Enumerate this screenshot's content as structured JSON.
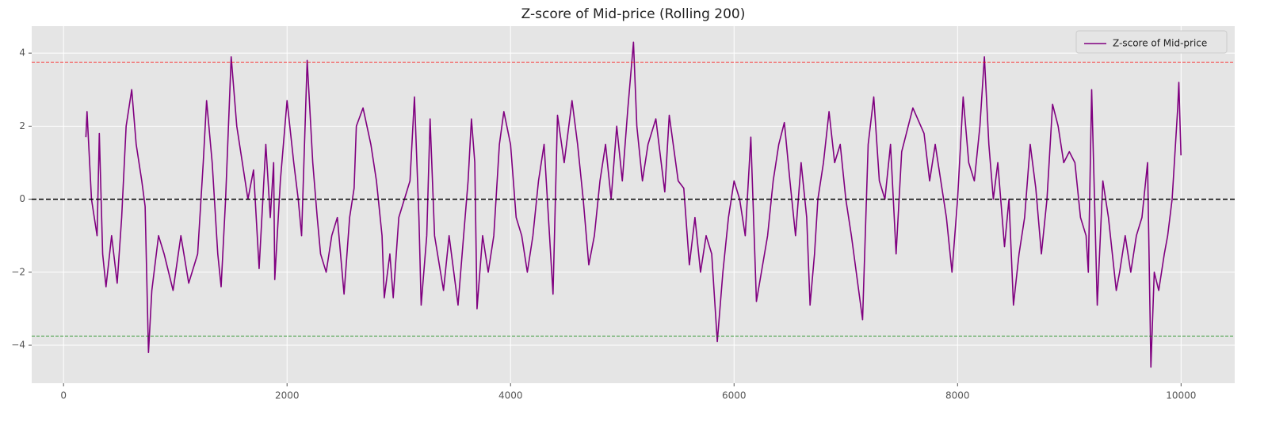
{
  "chart_data": {
    "type": "line",
    "title": "Z-score of Mid-price (Rolling 200)",
    "x": [
      200,
      210,
      250,
      300,
      320,
      350,
      380,
      430,
      480,
      520,
      560,
      610,
      650,
      700,
      730,
      760,
      790,
      850,
      900,
      980,
      1050,
      1120,
      1200,
      1250,
      1280,
      1330,
      1380,
      1410,
      1450,
      1500,
      1550,
      1600,
      1650,
      1700,
      1750,
      1810,
      1850,
      1880,
      1890,
      1940,
      2000,
      2060,
      2100,
      2130,
      2180,
      2230,
      2270,
      2300,
      2350,
      2400,
      2450,
      2510,
      2560,
      2600,
      2620,
      2680,
      2750,
      2800,
      2850,
      2870,
      2920,
      2950,
      3000,
      3050,
      3100,
      3140,
      3180,
      3200,
      3250,
      3280,
      3320,
      3400,
      3450,
      3530,
      3580,
      3620,
      3650,
      3680,
      3700,
      3750,
      3800,
      3850,
      3900,
      3940,
      4000,
      4050,
      4100,
      4150,
      4200,
      4250,
      4300,
      4380,
      4420,
      4480,
      4550,
      4600,
      4650,
      4700,
      4750,
      4800,
      4850,
      4900,
      4950,
      5000,
      5050,
      5100,
      5130,
      5180,
      5230,
      5300,
      5380,
      5420,
      5500,
      5550,
      5600,
      5650,
      5700,
      5750,
      5800,
      5850,
      5900,
      5950,
      6000,
      6050,
      6100,
      6150,
      6200,
      6300,
      6350,
      6400,
      6450,
      6500,
      6550,
      6600,
      6650,
      6680,
      6720,
      6750,
      6800,
      6850,
      6900,
      6950,
      7000,
      7050,
      7150,
      7200,
      7250,
      7300,
      7350,
      7400,
      7450,
      7500,
      7600,
      7700,
      7750,
      7800,
      7850,
      7900,
      7950,
      8000,
      8050,
      8100,
      8150,
      8200,
      8240,
      8280,
      8320,
      8360,
      8420,
      8460,
      8500,
      8550,
      8600,
      8650,
      8700,
      8750,
      8800,
      8850,
      8900,
      8950,
      9000,
      9050,
      9100,
      9150,
      9170,
      9200,
      9250,
      9300,
      9350,
      9420,
      9450,
      9500,
      9550,
      9600,
      9650,
      9700,
      9730,
      9760,
      9800,
      9850,
      9880,
      9920,
      9970,
      9980,
      9999
    ],
    "series": [
      {
        "name": "Z-score of Mid-price",
        "color": "#800080",
        "values": [
          1.7,
          2.4,
          0,
          -1,
          1.8,
          -1.5,
          -2.4,
          -1,
          -2.3,
          -0.5,
          2.0,
          3.0,
          1.5,
          0.5,
          -0.2,
          -4.2,
          -2.5,
          -1,
          -1.5,
          -2.5,
          -1,
          -2.3,
          -1.5,
          1.0,
          2.7,
          1.0,
          -1.5,
          -2.4,
          0,
          3.9,
          2.0,
          1.0,
          0,
          0.8,
          -1.9,
          1.5,
          -0.5,
          1.0,
          -2.2,
          0.5,
          2.7,
          1.0,
          0,
          -1,
          3.8,
          1.0,
          -0.5,
          -1.5,
          -2,
          -1,
          -0.5,
          -2.6,
          -0.5,
          0.3,
          2.0,
          2.5,
          1.5,
          0.5,
          -1,
          -2.7,
          -1.5,
          -2.7,
          -0.5,
          0,
          0.5,
          2.8,
          -0.5,
          -2.9,
          -1,
          2.2,
          -1,
          -2.5,
          -1.0,
          -2.9,
          -1,
          0.5,
          2.2,
          1.0,
          -3.0,
          -1,
          -2,
          -1,
          1.5,
          2.4,
          1.5,
          -0.5,
          -1.0,
          -2.0,
          -1,
          0.5,
          1.5,
          -2.6,
          2.3,
          1.0,
          2.7,
          1.5,
          0,
          -1.8,
          -1,
          0.5,
          1.5,
          0,
          2.0,
          0.5,
          2.5,
          4.3,
          2.0,
          0.5,
          1.5,
          2.2,
          0.2,
          2.3,
          0.5,
          0.3,
          -1.8,
          -0.5,
          -2,
          -1.0,
          -1.5,
          -3.9,
          -2.0,
          -0.5,
          0.5,
          0,
          -1,
          1.7,
          -2.8,
          -1,
          0.5,
          1.5,
          2.1,
          0.5,
          -1,
          1.0,
          -0.5,
          -2.9,
          -1.5,
          0,
          1.0,
          2.4,
          1.0,
          1.5,
          0,
          -1,
          -3.3,
          1.5,
          2.8,
          0.5,
          0,
          1.5,
          -1.5,
          1.3,
          2.5,
          1.8,
          0.5,
          1.5,
          0.5,
          -0.5,
          -2.0,
          0,
          2.8,
          1.0,
          0.5,
          2.0,
          3.9,
          1.5,
          0,
          1.0,
          -1.3,
          0,
          -2.9,
          -1.5,
          -0.5,
          1.5,
          0.3,
          -1.5,
          0,
          2.6,
          2.0,
          1.0,
          1.3,
          1.0,
          -0.5,
          -1.0,
          -2.0,
          3.0,
          -2.9,
          0.5,
          -0.5,
          -2.5,
          -2.0,
          -1.0,
          -2.0,
          -1,
          -0.5,
          1.0,
          -4.6,
          -2.0,
          -2.5,
          -1.5,
          -1.0,
          0,
          2.5,
          3.2,
          1.2
        ]
      }
    ],
    "hlines": [
      {
        "value": 3.75,
        "color": "#ff0000",
        "style": "dashed"
      },
      {
        "value": 0,
        "color": "#000000",
        "style": "dashed"
      },
      {
        "value": -3.75,
        "color": "#008000",
        "style": "dashed"
      }
    ],
    "xlim": [
      -285,
      10480
    ],
    "ylim": [
      -5.04,
      4.74
    ],
    "xticks": [
      0,
      2000,
      4000,
      6000,
      8000,
      10000
    ],
    "yticks": [
      {
        "value": -4,
        "label": "−4"
      },
      {
        "value": -2,
        "label": "−2"
      },
      0,
      2,
      4
    ],
    "grid": true,
    "legend": "upper right"
  }
}
